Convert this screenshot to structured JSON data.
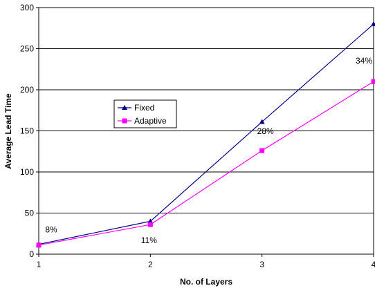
{
  "chart_data": {
    "type": "line",
    "title": "",
    "xlabel": "No. of Layers",
    "ylabel": "Average Lead Time",
    "x": [
      1,
      2,
      3,
      4
    ],
    "x_tick_labels": [
      "1",
      "2",
      "3",
      "4"
    ],
    "ylim": [
      0,
      300
    ],
    "y_ticks": [
      0,
      50,
      100,
      150,
      200,
      250,
      300
    ],
    "y_tick_labels": [
      "0",
      "50",
      "100",
      "150",
      "200",
      "250",
      "300"
    ],
    "grid": "horizontal",
    "legend_position": "center-left",
    "series": [
      {
        "name": "Fixed",
        "values": [
          12,
          40,
          161,
          280
        ],
        "color": "#000080",
        "marker": "triangle"
      },
      {
        "name": "Adaptive",
        "values": [
          11,
          36,
          126,
          210
        ],
        "color": "#ff00ff",
        "marker": "square"
      }
    ],
    "annotations": [
      {
        "x": 1,
        "y": 12,
        "text": "8%"
      },
      {
        "x": 2,
        "y": 36,
        "text": "11%"
      },
      {
        "x": 3,
        "y": 126,
        "text": "28%"
      },
      {
        "x": 4,
        "y": 210,
        "text": "34%"
      }
    ]
  }
}
